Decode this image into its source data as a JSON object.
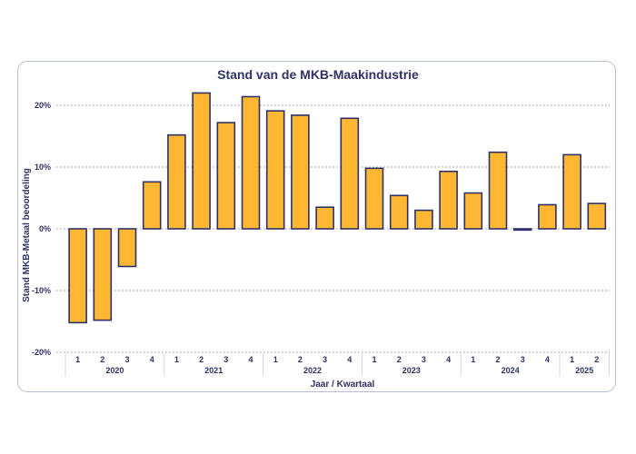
{
  "chart_data": {
    "type": "bar",
    "title": "Stand van de MKB-Maakindustrie",
    "xlabel": "Jaar / Kwartaal",
    "ylabel": "Stand MKB-Metaal beoordeling",
    "ylim": [
      -20,
      20
    ],
    "yticks": [
      "-20%",
      "-10%",
      "0%",
      "10%",
      "20%"
    ],
    "grid": true,
    "categories": [
      {
        "quarter": "1",
        "year": "2020"
      },
      {
        "quarter": "2",
        "year": "2020"
      },
      {
        "quarter": "3",
        "year": "2020"
      },
      {
        "quarter": "4",
        "year": "2020"
      },
      {
        "quarter": "1",
        "year": "2021"
      },
      {
        "quarter": "2",
        "year": "2021"
      },
      {
        "quarter": "3",
        "year": "2021"
      },
      {
        "quarter": "4",
        "year": "2021"
      },
      {
        "quarter": "1",
        "year": "2022"
      },
      {
        "quarter": "2",
        "year": "2022"
      },
      {
        "quarter": "3",
        "year": "2022"
      },
      {
        "quarter": "4",
        "year": "2022"
      },
      {
        "quarter": "1",
        "year": "2023"
      },
      {
        "quarter": "2",
        "year": "2023"
      },
      {
        "quarter": "3",
        "year": "2023"
      },
      {
        "quarter": "4",
        "year": "2023"
      },
      {
        "quarter": "1",
        "year": "2024"
      },
      {
        "quarter": "2",
        "year": "2024"
      },
      {
        "quarter": "3",
        "year": "2024"
      },
      {
        "quarter": "4",
        "year": "2024"
      },
      {
        "quarter": "1",
        "year": "2025"
      },
      {
        "quarter": "2",
        "year": "2025"
      }
    ],
    "years": [
      "2020",
      "2021",
      "2022",
      "2023",
      "2024",
      "2025"
    ],
    "values": [
      -15.2,
      -14.8,
      -6.1,
      7.6,
      15.2,
      22.0,
      17.2,
      21.4,
      19.1,
      18.4,
      3.5,
      17.9,
      9.8,
      5.4,
      3.0,
      9.3,
      5.8,
      12.4,
      -0.2,
      3.9,
      12.0,
      4.1
    ],
    "colors": {
      "bar_fill": "#fdb733",
      "bar_stroke": "#2e3366",
      "grid": "#8a8fa8",
      "text": "#2e3366"
    }
  }
}
